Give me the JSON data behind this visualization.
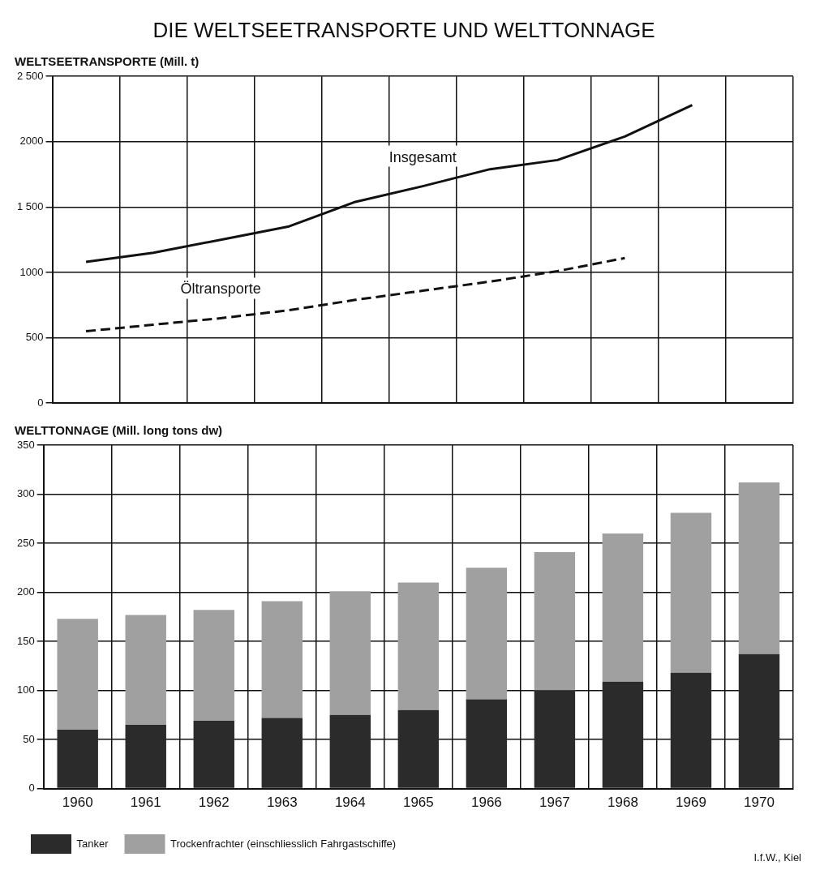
{
  "chart_data": [
    {
      "type": "line",
      "title": "DIE WELTSEETRANSPORTE UND WELTTONNAGE",
      "subtitle": "WELTSEETRANSPORTE (Mill. t)",
      "categories": [
        "1960",
        "1961",
        "1962",
        "1963",
        "1964",
        "1965",
        "1966",
        "1967",
        "1968",
        "1969",
        "1970"
      ],
      "series": [
        {
          "name": "Insgesamt",
          "color": "#111111",
          "line_style": "solid",
          "values": [
            1080,
            1150,
            1250,
            1350,
            1540,
            1660,
            1790,
            1860,
            2040,
            2280,
            null
          ]
        },
        {
          "name": "Öltransporte",
          "color": "#111111",
          "line_style": "dashed",
          "values": [
            550,
            600,
            650,
            710,
            790,
            860,
            930,
            1010,
            1110,
            null,
            null
          ]
        }
      ],
      "ylim": [
        0,
        2500
      ],
      "yticks": [
        0,
        500,
        1000,
        {
          "value": 1500,
          "label": "1 500"
        },
        2000,
        {
          "value": 2500,
          "label": "2 500"
        }
      ],
      "grid": true,
      "legend": false,
      "marker": "none",
      "tick_labels": "y"
    },
    {
      "type": "bar",
      "title": "WELTTONNAGE (Mill. long tons dw)",
      "categories": [
        "1960",
        "1961",
        "1962",
        "1963",
        "1964",
        "1965",
        "1966",
        "1967",
        "1968",
        "1969",
        "1970"
      ],
      "stacked": true,
      "series": [
        {
          "name": "Tanker",
          "color": "#2b2b2b",
          "values": [
            60,
            65,
            69,
            72,
            75,
            80,
            91,
            100,
            109,
            118,
            137
          ]
        },
        {
          "name": "Trockenfrachter (einschliesslich Fahrgastschiffe)",
          "color": "#a0a0a0",
          "values": [
            113,
            112,
            113,
            119,
            126,
            130,
            134,
            141,
            151,
            163,
            175
          ]
        }
      ],
      "ylim": [
        0,
        350
      ],
      "yticks": [
        0,
        50,
        100,
        150,
        200,
        250,
        300,
        350
      ],
      "grid": true,
      "legend": "bottom left",
      "annotations": [
        "I.f.W., Kiel"
      ]
    }
  ]
}
